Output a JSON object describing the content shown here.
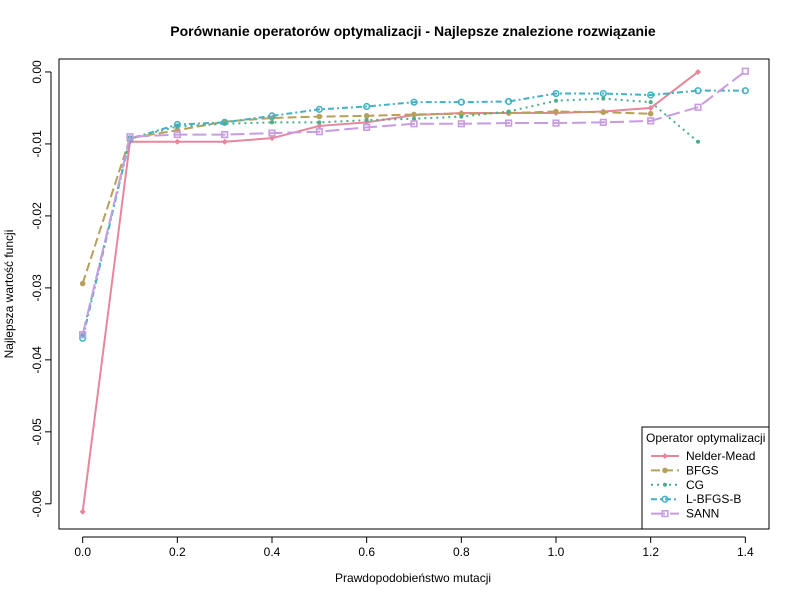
{
  "chart_data": {
    "type": "line",
    "title": "Porównanie operatorów optymalizacji - Najlepsze znalezione rozwiązanie",
    "xlabel": "Prawdopodobieństwo mutacji",
    "ylabel": "Najlepsza wartość funcji",
    "xlim": [
      -0.05,
      1.45
    ],
    "ylim": [
      -0.0635,
      0.0018
    ],
    "x_ticks": [
      {
        "value": 0.0,
        "label": "0.0"
      },
      {
        "value": 0.2,
        "label": "0.2"
      },
      {
        "value": 0.4,
        "label": "0.4"
      },
      {
        "value": 0.6,
        "label": "0.6"
      },
      {
        "value": 0.8,
        "label": "0.8"
      },
      {
        "value": 1.0,
        "label": "1.0"
      },
      {
        "value": 1.2,
        "label": "1.2"
      },
      {
        "value": 1.4,
        "label": "1.4"
      }
    ],
    "y_ticks": [
      {
        "value": 0.0,
        "label": "0.00"
      },
      {
        "value": -0.01,
        "label": "-0.01"
      },
      {
        "value": -0.02,
        "label": "-0.02"
      },
      {
        "value": -0.03,
        "label": "-0.03"
      },
      {
        "value": -0.04,
        "label": "-0.04"
      },
      {
        "value": -0.05,
        "label": "-0.05"
      },
      {
        "value": -0.06,
        "label": "-0.06"
      }
    ],
    "grid": false,
    "legend": {
      "title": "Operator optymalizacji",
      "position": "bottom-right"
    },
    "series": [
      {
        "name": "Nelder-Mead",
        "color": "#E8879C",
        "dash": "",
        "marker": "diamond",
        "x": [
          0.0,
          0.1,
          0.2,
          0.3,
          0.4,
          0.5,
          0.6,
          0.7,
          0.8,
          0.9,
          1.0,
          1.1,
          1.2,
          1.3
        ],
        "y": [
          -0.0611,
          -0.0097,
          -0.0097,
          -0.0097,
          -0.0092,
          -0.0075,
          -0.007,
          -0.006,
          -0.0057,
          -0.0057,
          -0.0057,
          -0.0055,
          -0.005,
          0.0
        ]
      },
      {
        "name": "BFGS",
        "color": "#B5A15C",
        "dash": "9,4",
        "marker": "circle",
        "x": [
          0.0,
          0.1,
          0.2,
          0.3,
          0.4,
          0.5,
          0.6,
          0.7,
          0.8,
          0.9,
          1.0,
          1.1,
          1.2
        ],
        "y": [
          -0.0294,
          -0.0092,
          -0.0081,
          -0.0069,
          -0.0064,
          -0.0062,
          -0.0061,
          -0.0059,
          -0.0058,
          -0.0057,
          -0.0055,
          -0.0056,
          -0.0058
        ]
      },
      {
        "name": "CG",
        "color": "#4AAE8A",
        "dash": "2,4",
        "marker": "dot",
        "x": [
          0.0,
          0.1,
          0.2,
          0.3,
          0.4,
          0.5,
          0.6,
          0.7,
          0.8,
          0.9,
          1.0,
          1.1,
          1.2,
          1.3
        ],
        "y": [
          -0.0365,
          -0.0092,
          -0.0076,
          -0.0072,
          -0.007,
          -0.007,
          -0.0067,
          -0.0065,
          -0.0062,
          -0.0055,
          -0.004,
          -0.0037,
          -0.0042,
          -0.0097
        ]
      },
      {
        "name": "L-BFGS-B",
        "color": "#45B0C4",
        "dash": "6,3,2,3",
        "marker": "circle-open",
        "x": [
          0.0,
          0.1,
          0.2,
          0.3,
          0.4,
          0.5,
          0.6,
          0.7,
          0.8,
          0.9,
          1.0,
          1.1,
          1.2,
          1.3,
          1.4
        ],
        "y": [
          -0.037,
          -0.0093,
          -0.0073,
          -0.007,
          -0.0061,
          -0.0052,
          -0.0048,
          -0.0042,
          -0.0042,
          -0.0041,
          -0.003,
          -0.003,
          -0.0032,
          -0.0026,
          -0.0026
        ]
      },
      {
        "name": "SANN",
        "color": "#C79CE0",
        "dash": "14,5",
        "marker": "square-open",
        "x": [
          0.0,
          0.1,
          0.2,
          0.3,
          0.4,
          0.5,
          0.6,
          0.7,
          0.8,
          0.9,
          1.0,
          1.1,
          1.2,
          1.3,
          1.4
        ],
        "y": [
          -0.0365,
          -0.009,
          -0.0087,
          -0.0087,
          -0.0085,
          -0.0083,
          -0.0077,
          -0.0072,
          -0.0072,
          -0.0071,
          -0.0071,
          -0.007,
          -0.0068,
          -0.0049,
          0.0001
        ]
      }
    ]
  }
}
